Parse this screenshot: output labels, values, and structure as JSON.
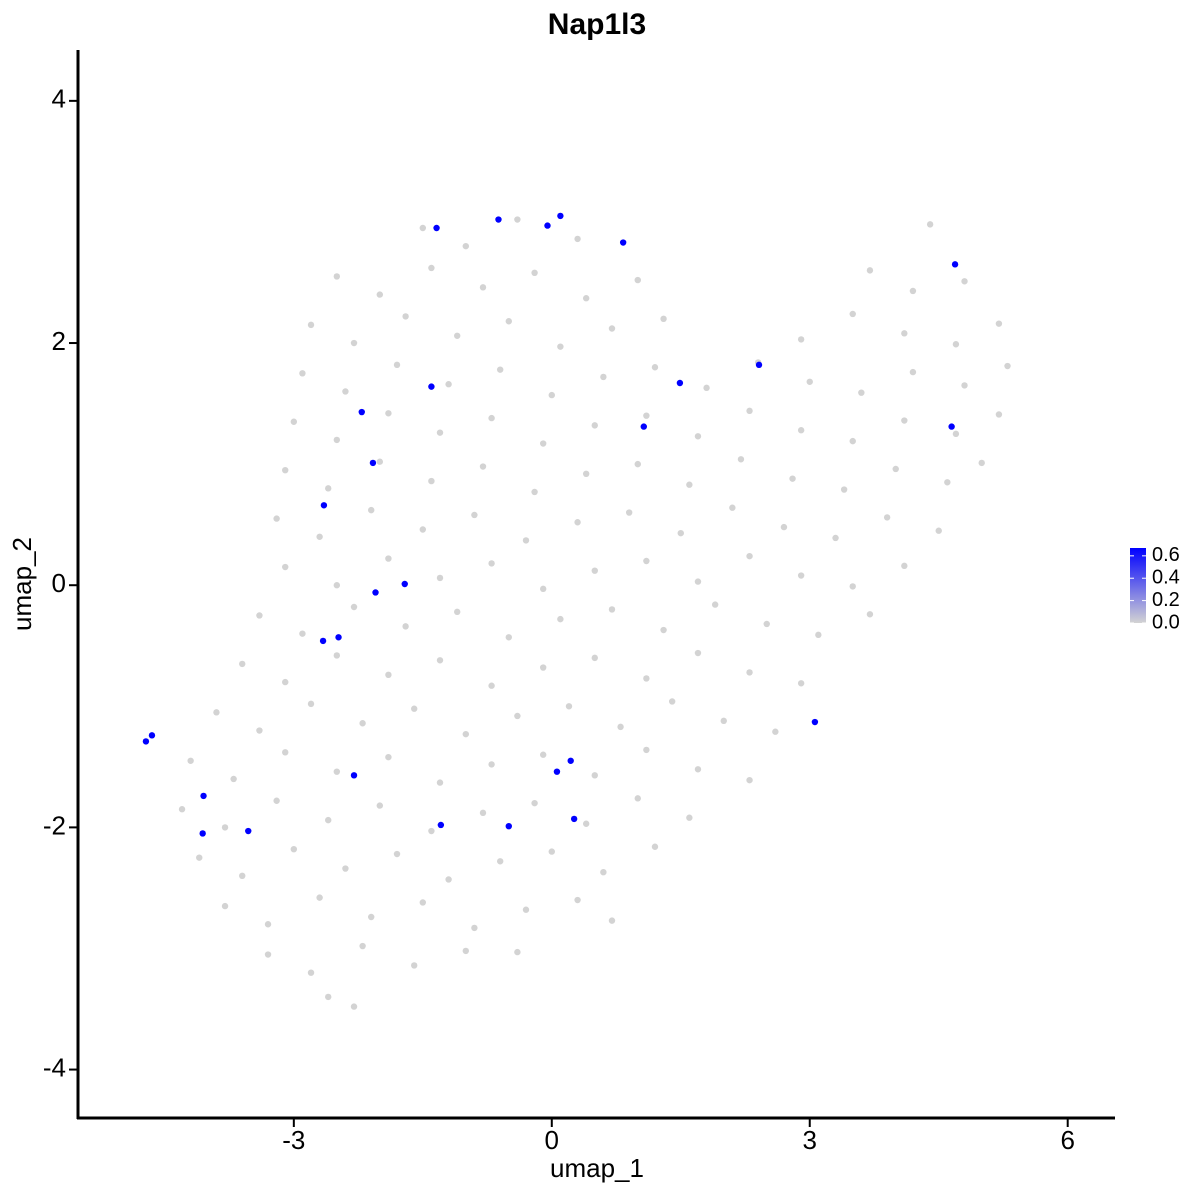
{
  "chart_data": {
    "type": "scatter",
    "title": "Nap1l3",
    "x_label": "umap_1",
    "y_label": "umap_2",
    "xlim": [
      -5.51,
      6.55
    ],
    "ylim": [
      -4.4,
      4.42
    ],
    "xticks": [
      -3,
      0,
      3,
      6
    ],
    "yticks": [
      -4,
      -2,
      0,
      2,
      4
    ],
    "color_low": "#d3d3d3",
    "color_high": "#0000ff",
    "colorbar_lim": [
      0,
      0.67
    ],
    "colorbar_ticks": [
      {
        "value": 0,
        "label": "0.0"
      },
      {
        "value": 0.2,
        "label": "0.2"
      },
      {
        "value": 0.4,
        "label": "0.4"
      },
      {
        "value": 0.6,
        "label": "0.6"
      }
    ],
    "x": [
      -1.5,
      -1.0,
      -0.4,
      0.3,
      4.4,
      -2.5,
      -2.0,
      -1.4,
      -0.8,
      -0.2,
      0.4,
      1.0,
      3.7,
      4.2,
      4.8,
      -2.8,
      -2.3,
      -1.7,
      -1.1,
      -0.5,
      0.1,
      0.7,
      1.3,
      2.9,
      3.5,
      4.1,
      4.7,
      5.2,
      -2.9,
      -2.4,
      -1.8,
      -1.2,
      -0.6,
      0.0,
      0.6,
      1.2,
      1.8,
      2.4,
      3.0,
      3.6,
      4.2,
      4.8,
      5.3,
      -3.0,
      -2.5,
      -1.9,
      -1.3,
      -0.7,
      -0.1,
      0.5,
      1.1,
      1.7,
      2.3,
      2.9,
      3.5,
      4.1,
      4.7,
      5.2,
      -3.1,
      -2.6,
      -2.0,
      -1.4,
      -0.8,
      -0.2,
      0.4,
      1.0,
      1.6,
      2.2,
      2.8,
      3.4,
      4.0,
      4.6,
      5.0,
      -3.2,
      -2.7,
      -2.1,
      -1.5,
      -0.9,
      -0.3,
      0.3,
      0.9,
      1.5,
      2.1,
      2.7,
      3.3,
      3.9,
      4.5,
      -3.1,
      -2.5,
      -1.9,
      -1.3,
      -0.7,
      -0.1,
      0.5,
      1.1,
      1.7,
      2.3,
      2.9,
      3.5,
      4.1,
      -3.4,
      -2.9,
      -2.3,
      -1.7,
      -1.1,
      -0.5,
      0.1,
      0.7,
      1.3,
      1.9,
      2.5,
      3.1,
      3.7,
      -3.6,
      -3.1,
      -2.5,
      -1.9,
      -1.3,
      -0.7,
      -0.1,
      0.5,
      1.1,
      1.7,
      2.3,
      2.9,
      -3.9,
      -3.4,
      -2.8,
      -2.2,
      -1.6,
      -1.0,
      -0.4,
      0.2,
      0.8,
      1.4,
      2.0,
      2.6,
      -4.2,
      -3.7,
      -3.1,
      -2.5,
      -1.9,
      -1.3,
      -0.7,
      -0.1,
      0.5,
      1.1,
      1.7,
      2.3,
      -4.3,
      -3.8,
      -3.2,
      -2.6,
      -2.0,
      -1.4,
      -0.8,
      -0.2,
      0.4,
      1.0,
      1.6,
      -4.1,
      -3.6,
      -3.0,
      -2.4,
      -1.8,
      -1.2,
      -0.6,
      0.0,
      0.6,
      1.2,
      -3.8,
      -3.3,
      -2.7,
      -2.1,
      -1.5,
      -0.9,
      -0.3,
      0.3,
      0.7,
      -3.3,
      -2.8,
      -2.2,
      -1.6,
      -1.0,
      -0.4,
      -2.6,
      -2.3,
      -4.72,
      -4.65,
      -4.05,
      -4.06,
      -3.53,
      -2.65,
      -2.66,
      -2.48,
      -2.05,
      -1.71,
      -2.21,
      -2.08,
      -1.4,
      -1.34,
      -0.62,
      -0.05,
      0.1,
      0.83,
      1.07,
      1.49,
      2.41,
      4.69,
      4.65,
      3.06,
      -2.3,
      -1.29,
      -0.5,
      0.06,
      0.22,
      0.26
    ],
    "y": [
      2.95,
      2.8,
      3.02,
      2.86,
      2.98,
      2.55,
      2.4,
      2.62,
      2.46,
      2.58,
      2.37,
      2.52,
      2.6,
      2.43,
      2.51,
      2.15,
      2.0,
      2.22,
      2.06,
      2.18,
      1.97,
      2.12,
      2.2,
      2.03,
      2.24,
      2.08,
      1.99,
      2.16,
      1.75,
      1.6,
      1.82,
      1.66,
      1.78,
      1.57,
      1.72,
      1.8,
      1.63,
      1.84,
      1.68,
      1.59,
      1.76,
      1.65,
      1.81,
      1.35,
      1.2,
      1.42,
      1.26,
      1.38,
      1.17,
      1.32,
      1.4,
      1.23,
      1.44,
      1.28,
      1.19,
      1.36,
      1.25,
      1.41,
      0.95,
      0.8,
      1.02,
      0.86,
      0.98,
      0.77,
      0.92,
      1.0,
      0.83,
      1.04,
      0.88,
      0.79,
      0.96,
      0.85,
      1.01,
      0.55,
      0.4,
      0.62,
      0.46,
      0.58,
      0.37,
      0.52,
      0.6,
      0.43,
      0.64,
      0.48,
      0.39,
      0.56,
      0.45,
      0.15,
      0.0,
      0.22,
      0.06,
      0.18,
      -0.03,
      0.12,
      0.2,
      0.03,
      0.24,
      0.08,
      -0.01,
      0.16,
      -0.25,
      -0.4,
      -0.18,
      -0.34,
      -0.22,
      -0.43,
      -0.28,
      -0.2,
      -0.37,
      -0.16,
      -0.32,
      -0.41,
      -0.24,
      -0.65,
      -0.8,
      -0.58,
      -0.74,
      -0.62,
      -0.83,
      -0.68,
      -0.6,
      -0.77,
      -0.56,
      -0.72,
      -0.81,
      -1.05,
      -1.2,
      -0.98,
      -1.14,
      -1.02,
      -1.23,
      -1.08,
      -1.0,
      -1.17,
      -0.96,
      -1.12,
      -1.21,
      -1.45,
      -1.6,
      -1.38,
      -1.54,
      -1.42,
      -1.63,
      -1.48,
      -1.4,
      -1.57,
      -1.36,
      -1.52,
      -1.61,
      -1.85,
      -2.0,
      -1.78,
      -1.94,
      -1.82,
      -2.03,
      -1.88,
      -1.8,
      -1.97,
      -1.76,
      -1.92,
      -2.25,
      -2.4,
      -2.18,
      -2.34,
      -2.22,
      -2.43,
      -2.28,
      -2.2,
      -2.37,
      -2.16,
      -2.65,
      -2.8,
      -2.58,
      -2.74,
      -2.62,
      -2.83,
      -2.68,
      -2.6,
      -2.77,
      -3.05,
      -3.2,
      -2.98,
      -3.14,
      -3.02,
      -3.03,
      -3.4,
      -3.48,
      -1.29,
      -1.24,
      -1.74,
      -2.05,
      -2.03,
      0.66,
      -0.46,
      -0.43,
      -0.06,
      0.01,
      1.43,
      1.01,
      1.64,
      2.95,
      3.02,
      2.97,
      3.05,
      2.83,
      1.31,
      1.67,
      1.82,
      2.65,
      1.31,
      -1.13,
      -1.57,
      -1.98,
      -1.99,
      -1.54,
      -1.45,
      -1.93
    ],
    "values": [
      0,
      0,
      0,
      0,
      0,
      0,
      0,
      0,
      0,
      0,
      0,
      0,
      0,
      0,
      0,
      0,
      0,
      0,
      0,
      0,
      0,
      0,
      0,
      0,
      0,
      0,
      0,
      0,
      0,
      0,
      0,
      0,
      0,
      0,
      0,
      0,
      0,
      0,
      0,
      0,
      0,
      0,
      0,
      0,
      0,
      0,
      0,
      0,
      0,
      0,
      0,
      0,
      0,
      0,
      0,
      0,
      0,
      0,
      0,
      0,
      0,
      0,
      0,
      0,
      0,
      0,
      0,
      0,
      0,
      0,
      0,
      0,
      0,
      0,
      0,
      0,
      0,
      0,
      0,
      0,
      0,
      0,
      0,
      0,
      0,
      0,
      0,
      0,
      0,
      0,
      0,
      0,
      0,
      0,
      0,
      0,
      0,
      0,
      0,
      0,
      0,
      0,
      0,
      0,
      0,
      0,
      0,
      0,
      0,
      0,
      0,
      0,
      0,
      0,
      0,
      0,
      0,
      0,
      0,
      0,
      0,
      0,
      0,
      0,
      0,
      0,
      0,
      0,
      0,
      0,
      0,
      0,
      0,
      0,
      0,
      0,
      0,
      0,
      0,
      0,
      0,
      0,
      0,
      0,
      0,
      0,
      0,
      0,
      0,
      0,
      0,
      0,
      0,
      0,
      0,
      0,
      0,
      0,
      0,
      0,
      0,
      0,
      0,
      0,
      0,
      0,
      0,
      0,
      0,
      0,
      0,
      0,
      0,
      0,
      0,
      0,
      0,
      0,
      0,
      0,
      0,
      0,
      0,
      0,
      0,
      0,
      0,
      0.67,
      0.67,
      0.67,
      0.67,
      0.67,
      0.67,
      0.67,
      0.67,
      0.67,
      0.67,
      0.67,
      0.67,
      0.67,
      0.67,
      0.67,
      0.67,
      0.67,
      0.67,
      0.67,
      0.67,
      0.67,
      0.67,
      0.67,
      0.67,
      0.67,
      0.67,
      0.67,
      0.67,
      0.67,
      0.67
    ]
  }
}
